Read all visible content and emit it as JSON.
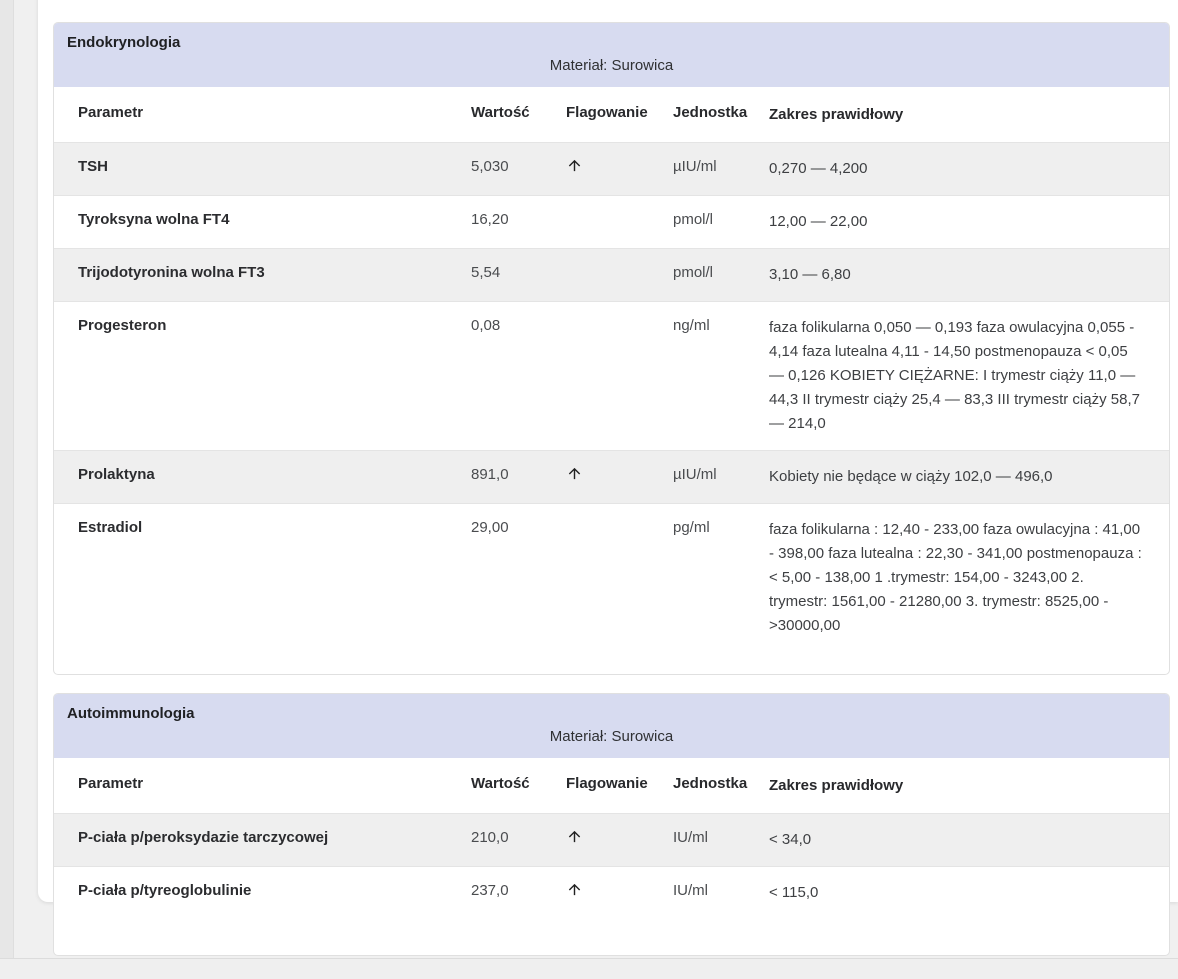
{
  "columns": [
    {
      "key": "parametr",
      "label": "Parametr"
    },
    {
      "key": "wartosc",
      "label": "Wartość"
    },
    {
      "key": "flagowanie",
      "label": "Flagowanie"
    },
    {
      "key": "jednostka",
      "label": "Jednostka"
    },
    {
      "key": "zakres",
      "label": "Zakres prawidłowy"
    }
  ],
  "sections": [
    {
      "title": "Endokrynologia",
      "material": "Materiał: Surowica",
      "rows": [
        {
          "parametr": "TSH",
          "wartosc": "5,030",
          "flag_icon": "arrow-up-icon",
          "jednostka": "µIU/ml",
          "zakres": "0,270 — 4,200"
        },
        {
          "parametr": "Tyroksyna wolna FT4",
          "wartosc": "16,20",
          "flag_icon": "",
          "jednostka": "pmol/l",
          "zakres": "12,00 — 22,00"
        },
        {
          "parametr": "Trijodotyronina wolna FT3",
          "wartosc": "5,54",
          "flag_icon": "",
          "jednostka": "pmol/l",
          "zakres": "3,10 — 6,80"
        },
        {
          "parametr": "Progesteron",
          "wartosc": "0,08",
          "flag_icon": "",
          "jednostka": "ng/ml",
          "zakres": "faza folikularna 0,050 — 0,193 faza owulacyjna 0,055 - 4,14 faza lutealna 4,11 - 14,50 postmenopauza < 0,05 — 0,126 KOBIETY CIĘŻARNE: I trymestr ciąży 11,0 — 44,3 II trymestr ciąży 25,4 — 83,3 III trymestr ciąży 58,7 — 214,0"
        },
        {
          "parametr": "Prolaktyna",
          "wartosc": "891,0",
          "flag_icon": "arrow-up-icon",
          "jednostka": "µIU/ml",
          "zakres": "Kobiety nie będące w ciąży 102,0 — 496,0"
        },
        {
          "parametr": "Estradiol",
          "wartosc": "29,00",
          "flag_icon": "",
          "jednostka": "pg/ml",
          "zakres": "faza folikularna : 12,40 - 233,00 faza owulacyjna : 41,00 - 398,00 faza lutealna : 22,30 - 341,00 postmenopauza : < 5,00 - 138,00 1 .trymestr: 154,00 - 3243,00 2. trymestr: 1561,00 - 21280,00 3. trymestr: 8525,00 - >30000,00"
        }
      ],
      "bottom_padding": 22
    },
    {
      "title": "Autoimmunologia",
      "material": "Materiał: Surowica",
      "rows": [
        {
          "parametr": "P-ciała p/peroksydazie tarczycowej",
          "wartosc": "210,0",
          "flag_icon": "arrow-up-icon",
          "jednostka": "IU/ml",
          "zakres": "< 34,0"
        },
        {
          "parametr": "P-ciała p/tyreoglobulinie",
          "wartosc": "237,0",
          "flag_icon": "arrow-up-icon",
          "jednostka": "IU/ml",
          "zakres": "< 115,0"
        }
      ],
      "bottom_padding": 36
    }
  ],
  "colors": {
    "section_header_bg": "#d7dbf0",
    "row_stripe_bg": "#efefef",
    "panel_border": "#e0e0e0",
    "flag_arrow": "#212121",
    "page_bg": "#f0f0f0",
    "card_bg": "#ffffff"
  }
}
